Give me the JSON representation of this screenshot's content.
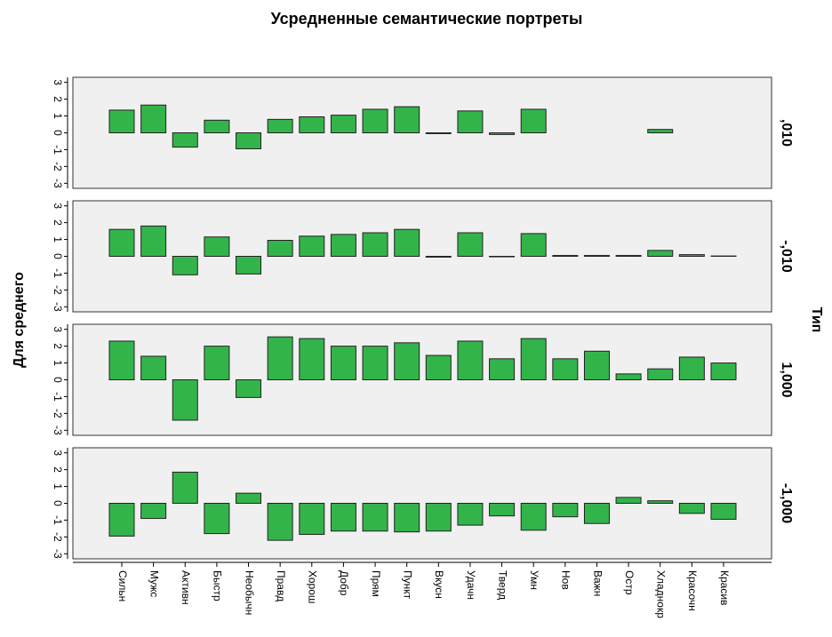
{
  "chart_data": {
    "type": "bar",
    "title": "Усредненные семантические портреты",
    "y_label": "Для среднего",
    "panel_label": "Тип",
    "categories": [
      "Сильн",
      "Мужс",
      "Активн",
      "Быстр",
      "Необычн",
      "Правд",
      "Хорош",
      "Добр",
      "Прям",
      "Пункт",
      "Вкусн",
      "Удачн",
      "Тверд",
      "Умн",
      "Нов",
      "Важн",
      "Остр",
      "Хладнокр",
      "Красочн",
      "Красив"
    ],
    "series": [
      {
        "name": ",010",
        "color": "#33b44a",
        "values": [
          1.35,
          1.65,
          -0.85,
          0.75,
          -0.95,
          0.8,
          0.95,
          1.05,
          1.4,
          1.55,
          -0.05,
          1.3,
          -0.1,
          1.4,
          0,
          0,
          0,
          0.2,
          0,
          0
        ]
      },
      {
        "name": "-,010",
        "color": "#33b44a",
        "values": [
          1.6,
          1.8,
          -1.1,
          1.15,
          -1.05,
          0.95,
          1.2,
          1.3,
          1.4,
          1.6,
          -0.05,
          1.4,
          -0.03,
          1.35,
          0.05,
          0.05,
          0.05,
          0.35,
          0.1,
          0.02
        ]
      },
      {
        "name": "1,000",
        "color": "#33b44a",
        "values": [
          2.3,
          1.4,
          -2.4,
          2.0,
          -1.05,
          2.55,
          2.45,
          2.0,
          2.0,
          2.2,
          1.45,
          2.3,
          1.25,
          2.45,
          1.25,
          1.7,
          0.35,
          0.65,
          1.35,
          1.0
        ]
      },
      {
        "name": "-1,000",
        "color": "#33b44a",
        "values": [
          -1.95,
          -0.9,
          1.85,
          -1.8,
          0.6,
          -2.2,
          -1.85,
          -1.65,
          -1.65,
          -1.7,
          -1.65,
          -1.3,
          -0.75,
          -1.6,
          -0.8,
          -1.2,
          0.35,
          0.15,
          -0.6,
          -0.95
        ]
      }
    ],
    "ylim": [
      -3.3,
      3.3
    ],
    "yticks": [
      -3,
      -2,
      -1,
      0,
      1,
      2,
      3
    ]
  }
}
